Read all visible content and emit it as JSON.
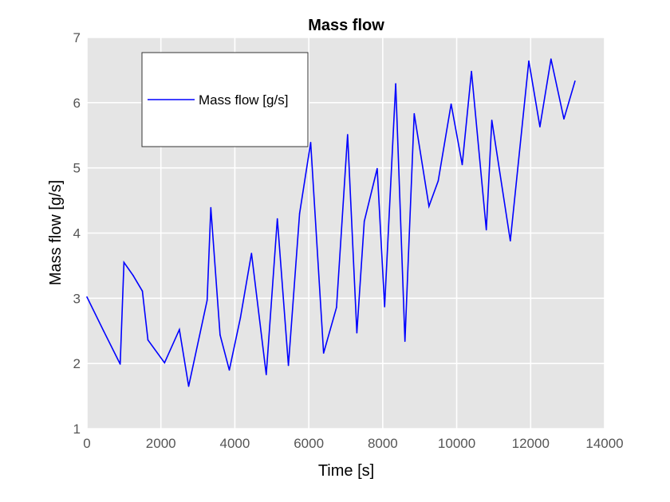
{
  "chart_data": {
    "type": "line",
    "title": "Mass flow",
    "xlabel": "Time [s]",
    "ylabel": "Mass flow [g/s]",
    "xlim": [
      0,
      14000
    ],
    "ylim": [
      1,
      7
    ],
    "xticks": [
      "0",
      "2000",
      "4000",
      "6000",
      "8000",
      "10000",
      "12000",
      "14000"
    ],
    "yticks": [
      "1",
      "2",
      "3",
      "4",
      "5",
      "6",
      "7"
    ],
    "grid": true,
    "legend_position": "top-left",
    "background_color": "#e5e5e5",
    "series": [
      {
        "name": "Mass flow [g/s]",
        "color": "#0000ff",
        "x": [
          0,
          450,
          900,
          1000,
          1250,
          1500,
          1650,
          2100,
          2500,
          2750,
          3250,
          3350,
          3600,
          3850,
          4150,
          4450,
          4850,
          5150,
          5450,
          5750,
          6050,
          6400,
          6750,
          7050,
          7300,
          7500,
          7850,
          8050,
          8350,
          8600,
          8850,
          9250,
          9500,
          9850,
          10150,
          10400,
          10800,
          10950,
          11450,
          11950,
          12250,
          12550,
          12900,
          13200
        ],
        "y": [
          3.02,
          2.5,
          1.99,
          3.55,
          3.35,
          3.11,
          2.36,
          2.01,
          2.52,
          1.65,
          2.97,
          4.39,
          2.44,
          1.9,
          2.7,
          3.69,
          1.83,
          4.22,
          1.97,
          4.3,
          5.39,
          2.16,
          2.86,
          5.51,
          2.47,
          4.18,
          4.99,
          2.87,
          6.29,
          2.34,
          5.83,
          4.41,
          4.8,
          5.98,
          5.05,
          6.48,
          4.05,
          5.73,
          3.88,
          6.64,
          5.63,
          6.67,
          5.75,
          6.33
        ]
      }
    ]
  }
}
